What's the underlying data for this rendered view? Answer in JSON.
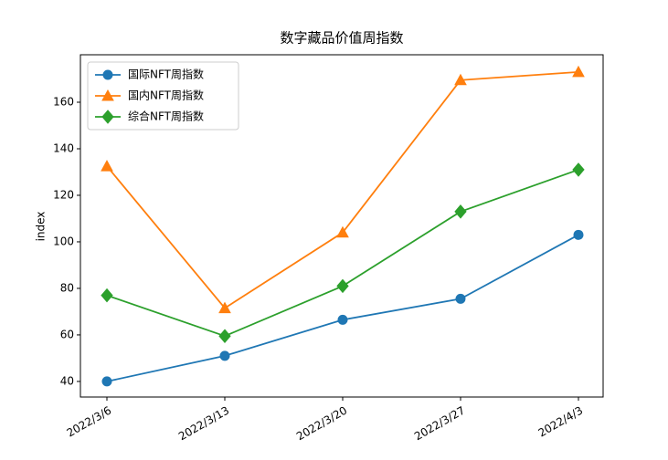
{
  "chart_data": {
    "type": "line",
    "title": "数字藏品价值周指数",
    "y_label": "index",
    "categories": [
      "2022/3/6",
      "2022/3/13",
      "2022/3/20",
      "2022/3/27",
      "2022/4/3"
    ],
    "series": [
      {
        "name": "国际NFT周指数",
        "color": "#1f77b4",
        "marker": "circle",
        "values": [
          40,
          51,
          66.5,
          75.5,
          103
        ]
      },
      {
        "name": "国内NFT周指数",
        "color": "#ff7f0e",
        "marker": "triangle",
        "values": [
          132.5,
          71.5,
          104,
          169.5,
          173
        ]
      },
      {
        "name": "综合NFT周指数",
        "color": "#2ca02c",
        "marker": "diamond",
        "values": [
          77,
          59.5,
          81,
          113,
          131
        ]
      }
    ],
    "ylim": [
      33.3,
      180.4
    ],
    "yticks": [
      40,
      60,
      80,
      100,
      120,
      140,
      160
    ],
    "grid": false,
    "legend": "upper-left"
  }
}
